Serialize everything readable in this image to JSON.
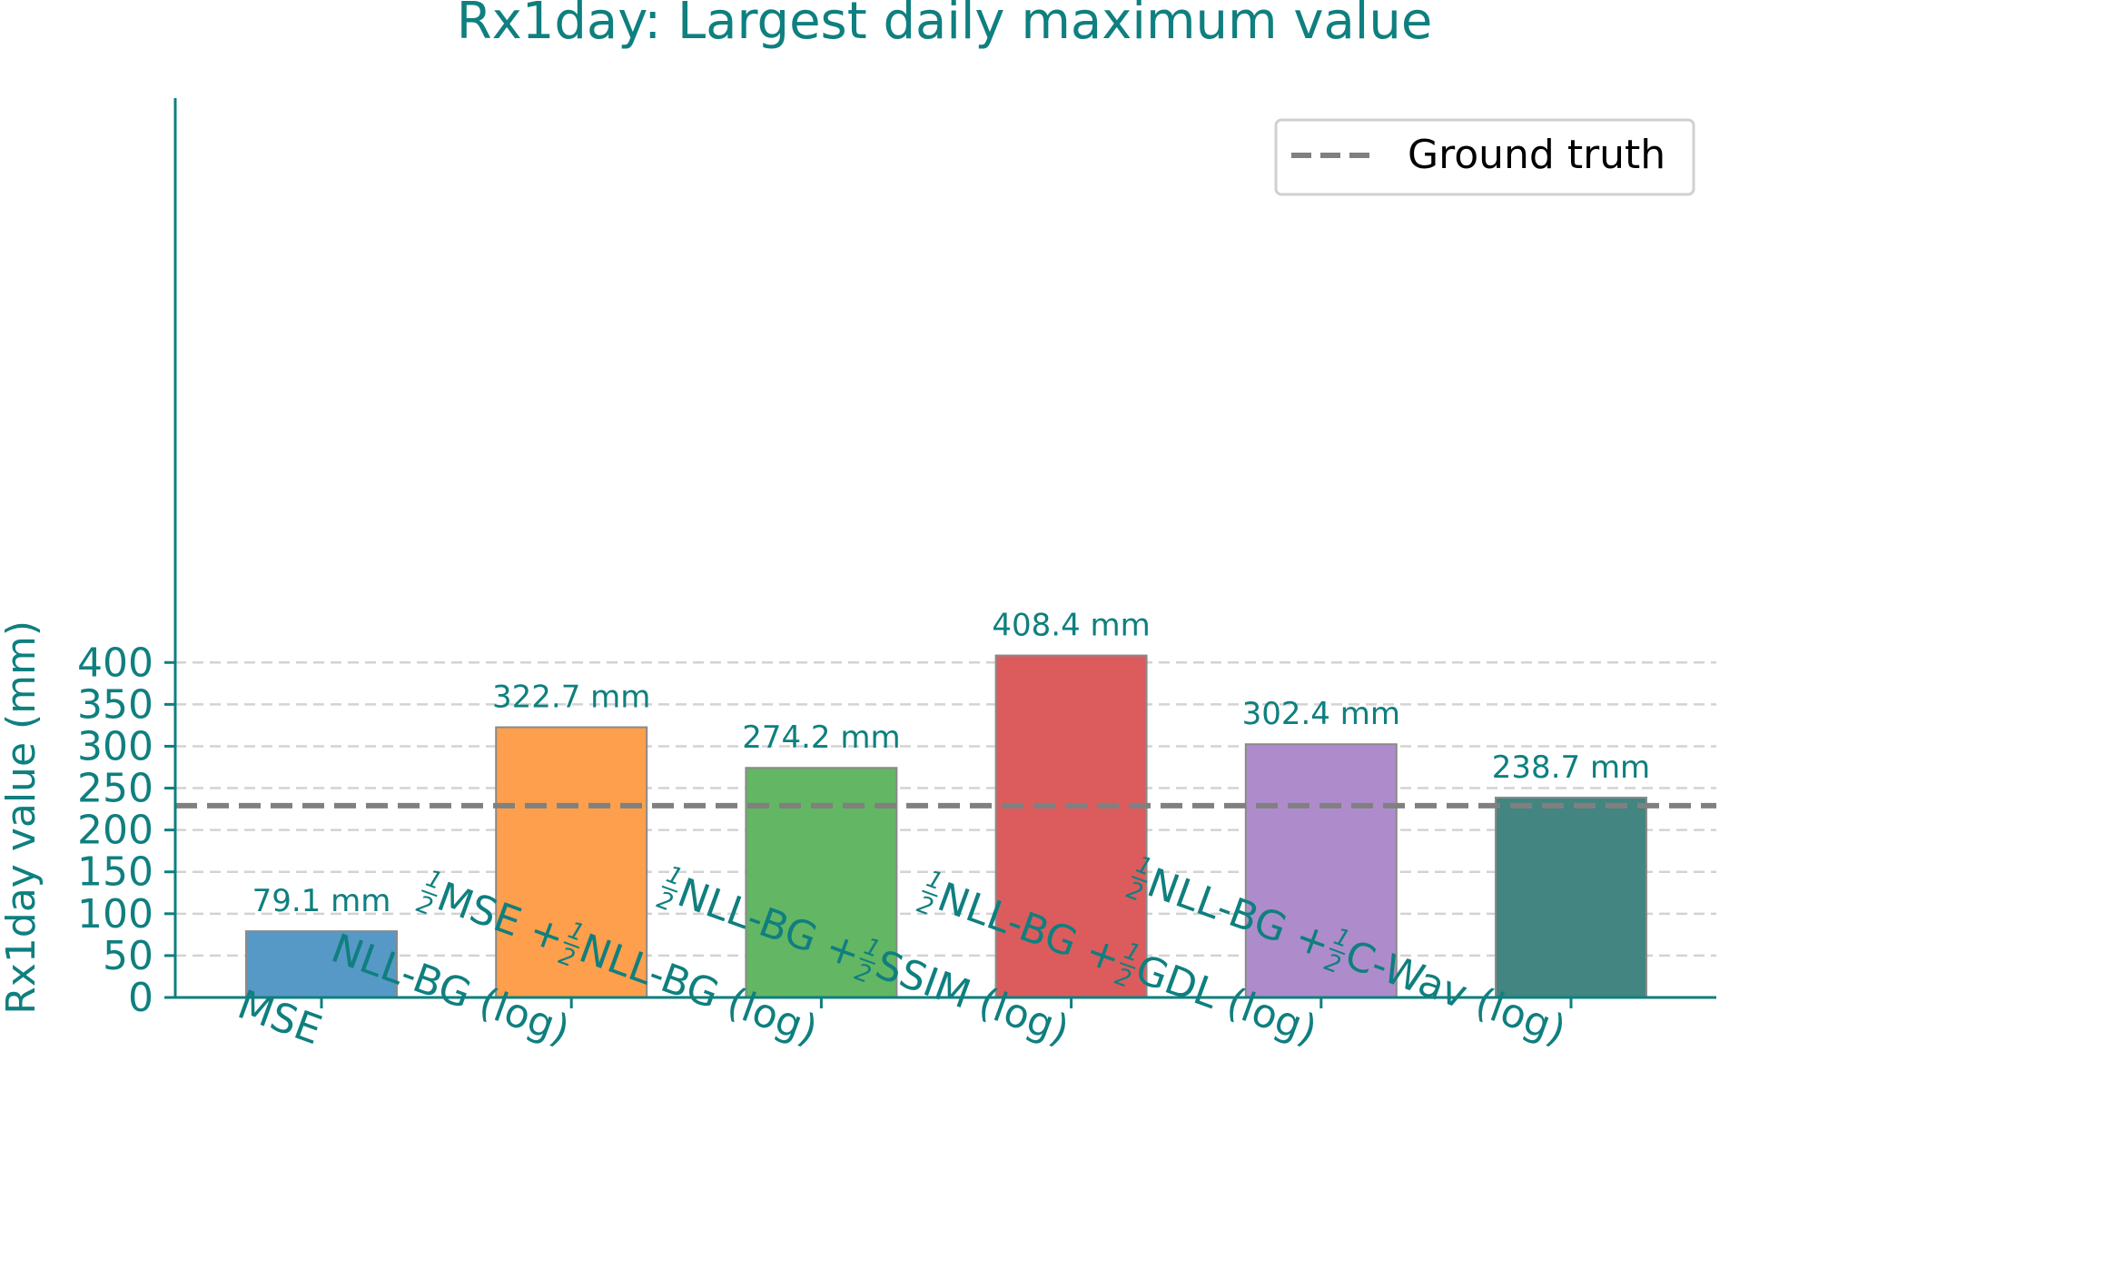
{
  "colors": {
    "text": "#0f7f7f",
    "axis": "#0f7f7f",
    "grid": "#d3d3d3",
    "bar_edge": "#8a8a8a",
    "ground_truth": "#808080",
    "legend_text": "#000000"
  },
  "chart_data": {
    "type": "bar",
    "title": "Rx1day: Largest daily maximum value",
    "xlabel": "",
    "ylabel": "Rx1day value (mm)",
    "ylim": [
      0,
      430
    ],
    "yticks": [
      0,
      50,
      100,
      150,
      200,
      250,
      300,
      350,
      400
    ],
    "grid": "horizontal dashed",
    "legend_position": "top-right",
    "categories": [
      "MSE",
      "NLL-BG (log)",
      "½MSE + ½NLL-BG (log)",
      "½NLL-BG + ½SSIM (log)",
      "½NLL-BG + ½GDL (log)",
      "½NLL-BG + ½C-Wav (log)"
    ],
    "category_parts": [
      [
        "MSE"
      ],
      [
        "NLL-BG (log)"
      ],
      [
        "{h}",
        "MSE + ",
        "{h}",
        "NLL-BG (log)"
      ],
      [
        "{h}",
        "NLL-BG + ",
        "{h}",
        "SSIM (log)"
      ],
      [
        "{h}",
        "NLL-BG + ",
        "{h}",
        "GDL (log)"
      ],
      [
        "{h}",
        "NLL-BG + ",
        "{h}",
        "C-Wav (log)"
      ]
    ],
    "values": [
      79.1,
      322.7,
      274.2,
      408.4,
      302.4,
      238.7
    ],
    "value_labels": [
      "79.1 mm",
      "322.7 mm",
      "274.2 mm",
      "408.4 mm",
      "302.4 mm",
      "238.7 mm"
    ],
    "bar_colors": [
      "#5799c6",
      "#fd9f4c",
      "#63b663",
      "#dc5c5d",
      "#ae8ccb",
      "#428581"
    ],
    "reference_line": {
      "name": "Ground truth",
      "value": 229.0,
      "style": "dashed"
    }
  }
}
